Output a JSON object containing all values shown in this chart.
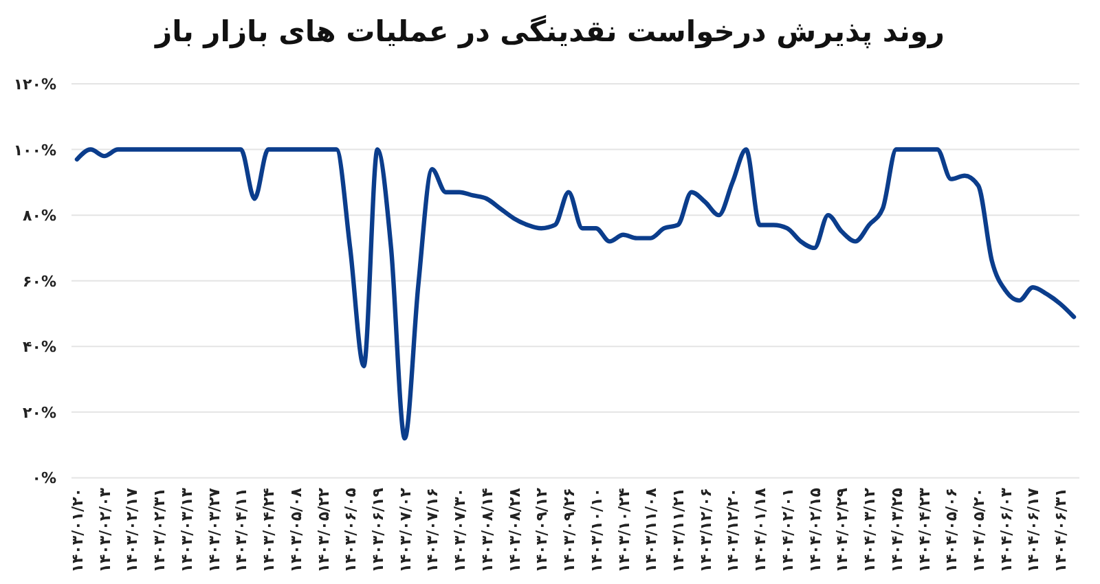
{
  "chart_data": {
    "type": "line",
    "title": "روند پذیرش درخواست نقدینگی در عملیات های بازار باز",
    "categories": [
      "۱۴۰۳/۰۱/۲۰",
      null,
      "۱۴۰۳/۰۲/۰۳",
      null,
      "۱۴۰۳/۰۲/۱۷",
      null,
      "۱۴۰۳/۰۲/۳۱",
      null,
      "۱۴۰۳/۰۳/۱۳",
      null,
      "۱۴۰۳/۰۳/۲۷",
      null,
      "۱۴۰۳/۰۴/۱۱",
      null,
      "۱۴۰۳/۰۴/۲۴",
      null,
      "۱۴۰۳/۰۵/۰۸",
      null,
      "۱۴۰۳/۰۵/۲۲",
      null,
      "۱۴۰۳/۰۶/۰۵",
      null,
      "۱۴۰۳/۰۶/۱۹",
      null,
      "۱۴۰۳/۰۷/۰۲",
      null,
      "۱۴۰۳/۰۷/۱۶",
      null,
      "۱۴۰۳/۰۷/۳۰",
      null,
      "۱۴۰۳/۰۸/۱۴",
      null,
      "۱۴۰۳/۰۸/۲۸",
      null,
      "۱۴۰۳/۰۹/۱۲",
      null,
      "۱۴۰۳/۰۹/۲۶",
      null,
      "۱۴۰۳/۱۰/۱۰",
      null,
      "۱۴۰۳/۱۰/۲۴",
      null,
      "۱۴۰۳/۱۱/۰۸",
      null,
      "۱۴۰۳/۱۱/۲۱",
      null,
      "۱۴۰۳/۱۲/۰۶",
      null,
      "۱۴۰۳/۱۲/۲۰",
      null,
      "۱۴۰۴/۰۱/۱۸",
      null,
      "۱۴۰۴/۰۲/۰۱",
      null,
      "۱۴۰۴/۰۲/۱۵",
      null,
      "۱۴۰۴/۰۲/۲۹",
      null,
      "۱۴۰۴/۰۳/۱۲",
      null,
      "۱۴۰۴/۰۳/۲۵",
      null,
      "۱۴۰۴/۰۴/۲۳",
      null,
      "۱۴۰۴/۰۵/۰۶",
      null,
      "۱۴۰۴/۰۵/۲۰",
      null,
      "۱۴۰۴/۰۶/۰۳",
      null,
      "۱۴۰۴/۰۶/۱۷",
      null,
      "۱۴۰۴/۰۶/۳۱",
      null
    ],
    "series": [
      {
        "color": "#0b3d8c",
        "values": [
          97,
          100,
          98,
          100,
          100,
          100,
          100,
          100,
          100,
          100,
          100,
          100,
          100,
          85,
          100,
          100,
          100,
          100,
          100,
          100,
          70,
          34,
          100,
          70,
          12,
          59,
          94,
          87,
          87,
          86,
          85,
          82,
          79,
          77,
          76,
          77,
          87,
          76,
          76,
          72,
          74,
          73,
          73,
          76,
          77,
          87,
          84,
          80,
          90,
          100,
          77,
          77,
          76,
          72,
          70,
          80,
          75,
          72,
          77,
          82,
          100,
          100,
          100,
          100,
          91,
          92,
          89,
          66,
          57,
          54,
          58,
          56,
          53,
          49
        ]
      }
    ],
    "ylim": [
      0,
      120
    ],
    "yticks": [
      {
        "value": 0,
        "label": "۰%"
      },
      {
        "value": 20,
        "label": "۲۰%"
      },
      {
        "value": 40,
        "label": "۴۰%"
      },
      {
        "value": 60,
        "label": "۶۰%"
      },
      {
        "value": 80,
        "label": "۸۰%"
      },
      {
        "value": 100,
        "label": "۱۰۰%"
      },
      {
        "value": 120,
        "label": "۱۲۰%"
      }
    ],
    "grid": "y",
    "line_style": "solid"
  }
}
